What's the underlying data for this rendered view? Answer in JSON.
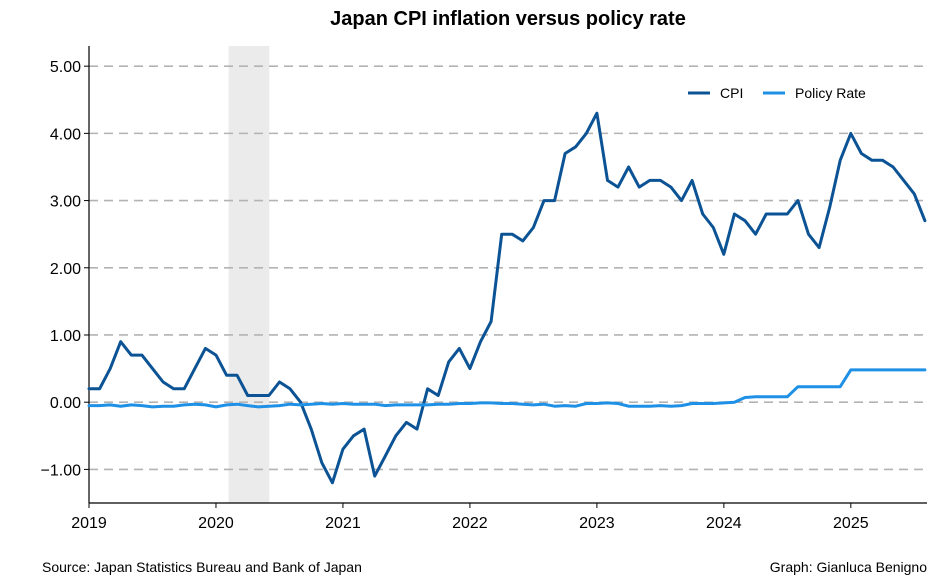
{
  "chart_data": {
    "type": "line",
    "title": "Japan CPI inflation versus policy rate",
    "xlabel": "",
    "ylabel": "",
    "xlim": [
      2019.0,
      2025.6
    ],
    "ylim": [
      -1.5,
      5.3
    ],
    "x_ticks": [
      2019,
      2020,
      2021,
      2022,
      2023,
      2024,
      2025
    ],
    "y_ticks": [
      5.0,
      4.0,
      3.0,
      2.0,
      1.0,
      0.0,
      -1.0
    ],
    "y_tick_labels": [
      "5.00",
      "4.00",
      "3.00",
      "2.00",
      "1.00",
      "0.00",
      "−1.00"
    ],
    "grid": "horizontal dashed",
    "legend_position": "top-right",
    "shaded_period": {
      "start": 2020.1,
      "end": 2020.42,
      "color": "#ebebeb"
    },
    "series": [
      {
        "name": "CPI",
        "color": "#0b5394",
        "x_start": 2019.0,
        "x_step_months": 1,
        "values": [
          0.2,
          0.2,
          0.5,
          0.9,
          0.7,
          0.7,
          0.5,
          0.3,
          0.2,
          0.2,
          0.5,
          0.8,
          0.7,
          0.4,
          0.4,
          0.1,
          0.1,
          0.1,
          0.3,
          0.2,
          0.0,
          -0.4,
          -0.9,
          -1.2,
          -0.7,
          -0.5,
          -0.4,
          -1.1,
          -0.8,
          -0.5,
          -0.3,
          -0.4,
          0.2,
          0.1,
          0.6,
          0.8,
          0.5,
          0.9,
          1.2,
          2.5,
          2.5,
          2.4,
          2.6,
          3.0,
          3.0,
          3.7,
          3.8,
          4.0,
          4.3,
          3.3,
          3.2,
          3.5,
          3.2,
          3.3,
          3.3,
          3.2,
          3.0,
          3.3,
          2.8,
          2.6,
          2.2,
          2.8,
          2.7,
          2.5,
          2.8,
          2.8,
          2.8,
          3.0,
          2.5,
          2.3,
          2.9,
          3.6,
          4.0,
          3.7,
          3.6,
          3.6,
          3.5,
          3.3,
          3.1,
          2.7
        ]
      },
      {
        "name": "Policy Rate",
        "color": "#1e90e6",
        "x_start": 2019.0,
        "x_step_months": 1,
        "values": [
          -0.05,
          -0.05,
          -0.04,
          -0.06,
          -0.04,
          -0.05,
          -0.07,
          -0.06,
          -0.06,
          -0.04,
          -0.03,
          -0.04,
          -0.07,
          -0.04,
          -0.03,
          -0.05,
          -0.07,
          -0.06,
          -0.05,
          -0.03,
          -0.04,
          -0.03,
          -0.02,
          -0.03,
          -0.02,
          -0.03,
          -0.03,
          -0.03,
          -0.05,
          -0.04,
          -0.04,
          -0.04,
          -0.04,
          -0.03,
          -0.03,
          -0.02,
          -0.02,
          -0.01,
          -0.01,
          -0.02,
          -0.02,
          -0.03,
          -0.04,
          -0.03,
          -0.06,
          -0.05,
          -0.06,
          -0.02,
          -0.02,
          -0.01,
          -0.02,
          -0.06,
          -0.06,
          -0.06,
          -0.05,
          -0.06,
          -0.05,
          -0.02,
          -0.02,
          -0.02,
          -0.01,
          0.0,
          0.07,
          0.08,
          0.08,
          0.08,
          0.08,
          0.23,
          0.23,
          0.23,
          0.23,
          0.23,
          0.48,
          0.48,
          0.48,
          0.48,
          0.48,
          0.48,
          0.48,
          0.48
        ]
      }
    ]
  },
  "footer": {
    "source": "Source: Japan Statistics Bureau and Bank of Japan",
    "credit": "Graph: Gianluca Benigno"
  }
}
